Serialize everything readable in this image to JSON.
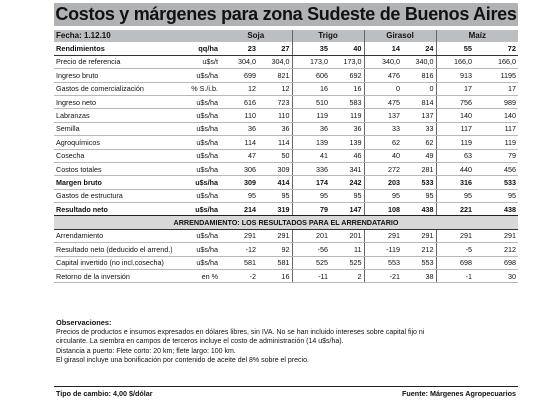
{
  "title": "Costos y márgenes para zona Sudeste de Buenos Aires",
  "header": {
    "fecha": "Fecha: 1.12.10",
    "crops": [
      "Soja",
      "Trigo",
      "Girasol",
      "Maíz"
    ]
  },
  "column_header": {
    "label": "Rendimientos",
    "unit": "qq/ha",
    "values": [
      "23",
      "27",
      "35",
      "40",
      "14",
      "24",
      "55",
      "72"
    ]
  },
  "rows": [
    {
      "label": "Precio de referencia",
      "unit": "u$s/t",
      "values": [
        "304,0",
        "304,0",
        "173,0",
        "173,0",
        "340,0",
        "340,0",
        "166,0",
        "166,0"
      ],
      "style": ""
    },
    {
      "label": "Ingreso bruto",
      "unit": "u$s/ha",
      "values": [
        "699",
        "821",
        "606",
        "692",
        "476",
        "816",
        "913",
        "1195"
      ],
      "style": ""
    },
    {
      "label": "Gastos de comercialización",
      "unit": "% S./i.b.",
      "values": [
        "12",
        "12",
        "16",
        "16",
        "0",
        "0",
        "17",
        "17"
      ],
      "style": ""
    },
    {
      "label": "Ingreso neto",
      "unit": "u$s/ha",
      "values": [
        "616",
        "723",
        "510",
        "583",
        "475",
        "814",
        "756",
        "989"
      ],
      "style": ""
    },
    {
      "label": "Labranzas",
      "unit": "u$s/ha",
      "values": [
        "110",
        "110",
        "119",
        "119",
        "137",
        "137",
        "140",
        "140"
      ],
      "style": ""
    },
    {
      "label": "Semilla",
      "unit": "u$s/ha",
      "values": [
        "36",
        "36",
        "36",
        "36",
        "33",
        "33",
        "117",
        "117"
      ],
      "style": ""
    },
    {
      "label": "Agroquímicos",
      "unit": "u$s/ha",
      "values": [
        "114",
        "114",
        "139",
        "139",
        "62",
        "62",
        "119",
        "119"
      ],
      "style": ""
    },
    {
      "label": "Cosecha",
      "unit": "u$s/ha",
      "values": [
        "47",
        "50",
        "41",
        "46",
        "40",
        "49",
        "63",
        "79"
      ],
      "style": ""
    },
    {
      "label": "Costos totales",
      "unit": "u$s/ha",
      "values": [
        "306",
        "309",
        "336",
        "341",
        "272",
        "281",
        "440",
        "456"
      ],
      "style": ""
    },
    {
      "label": "Margen bruto",
      "unit": "u$s/ha",
      "values": [
        "309",
        "414",
        "174",
        "242",
        "203",
        "533",
        "316",
        "533"
      ],
      "style": "bold"
    },
    {
      "label": "Gastos de estructura",
      "unit": "u$s/ha",
      "values": [
        "95",
        "95",
        "95",
        "95",
        "95",
        "95",
        "95",
        "95"
      ],
      "style": ""
    },
    {
      "label": "Resultado neto",
      "unit": "u$s/ha",
      "values": [
        "214",
        "319",
        "79",
        "147",
        "108",
        "438",
        "221",
        "438"
      ],
      "style": "bold strong"
    }
  ],
  "section_title": "ARRENDAMIENTO: LOS RESULTADOS PARA EL ARRENDATARIO",
  "rows2": [
    {
      "label": "Arrendamiento",
      "unit": "u$s/ha",
      "values": [
        "291",
        "291",
        "201",
        "201",
        "291",
        "291",
        "291",
        "291"
      ]
    },
    {
      "label": "Resultado neto (deducido el arrend.)",
      "unit": "u$s/ha",
      "values": [
        "-12",
        "92",
        "-56",
        "11",
        "-119",
        "212",
        "-5",
        "212"
      ]
    },
    {
      "label": "Capital invertido (no incl.cosecha)",
      "unit": "u$s/ha",
      "values": [
        "581",
        "581",
        "525",
        "525",
        "553",
        "553",
        "698",
        "698"
      ]
    },
    {
      "label": "Retorno de la inversión",
      "unit": "en %",
      "values": [
        "-2",
        "16",
        "-11",
        "2",
        "-21",
        "38",
        "-1",
        "30"
      ]
    }
  ],
  "notes": {
    "title": "Observaciones:",
    "lines": [
      "Precios de productos e insumos expresados en dólares libres, sin IVA. No se han incluido intereses sobre capital fijo ni",
      "circulante. La siembra en campos de terceros incluye el costo de administración (14 u$s/ha).",
      "Distancia a puerto: Flete corto: 20 km;  flete largo: 100 km.",
      "El girasol incluye una bonificación por contenido de aceite del 8% sobre el precio."
    ]
  },
  "footer": {
    "left": "Tipo de cambio: 4,00  $/dólar",
    "right": "Fuente: Márgenes Agropecuarios"
  }
}
